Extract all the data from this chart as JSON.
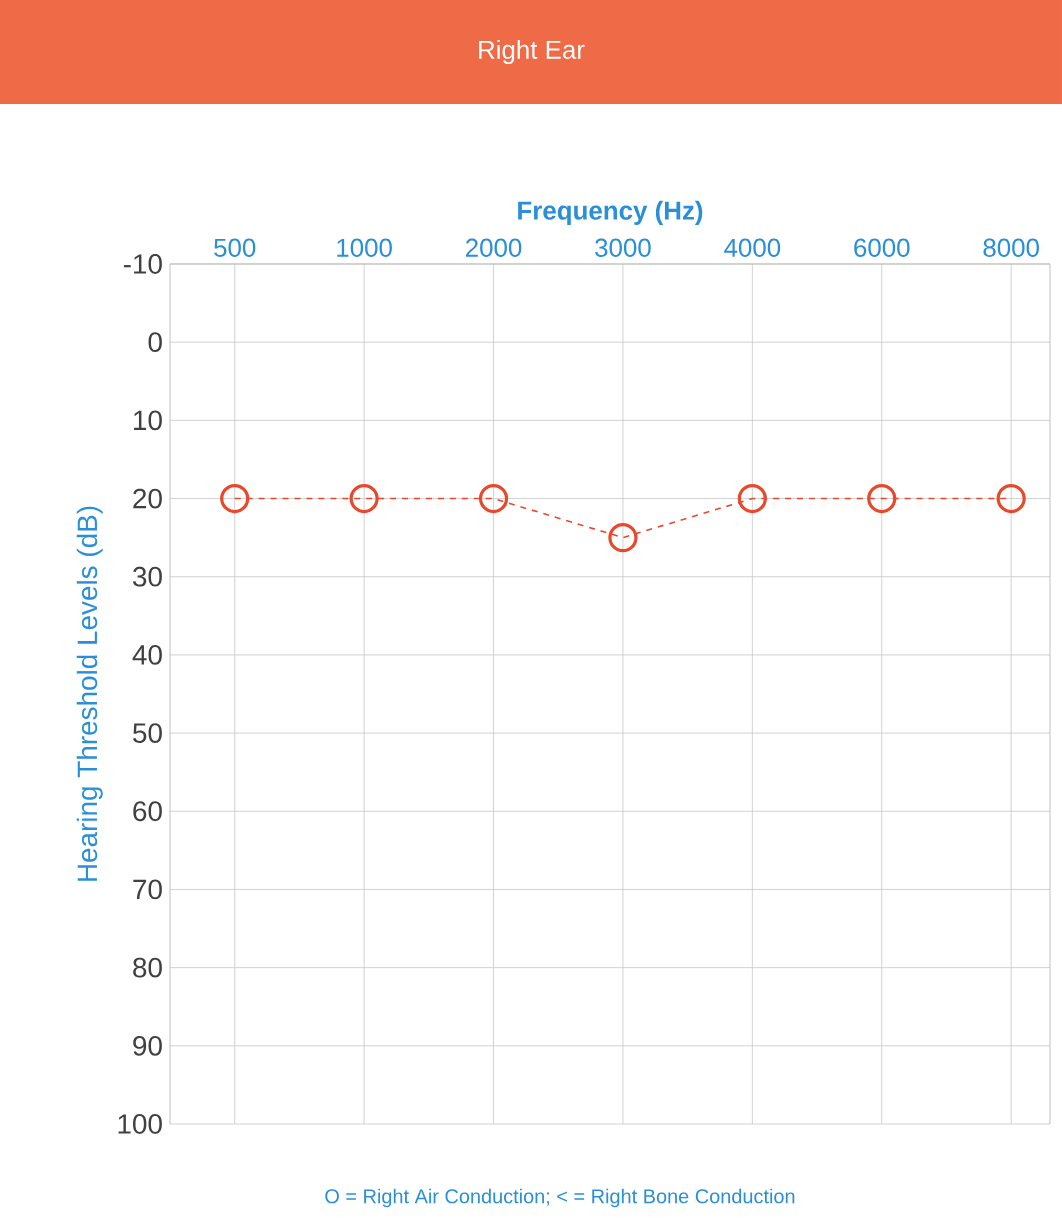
{
  "chart_data": {
    "type": "line",
    "title": "Right Ear",
    "xlabel": "Frequency (Hz)",
    "ylabel": "Hearing Threshold Levels (dB)",
    "categories": [
      "500",
      "1000",
      "2000",
      "3000",
      "4000",
      "6000",
      "8000"
    ],
    "series": [
      {
        "color": "#e8482c",
        "values": [
          20,
          20,
          20,
          25,
          20,
          20,
          20
        ]
      }
    ],
    "ylim": [
      100,
      -10
    ],
    "yticks": [
      -10,
      0,
      10,
      20,
      30,
      40,
      50,
      60,
      70,
      80,
      90,
      100
    ],
    "grid": true,
    "marker": "circle",
    "line_style": "dashed",
    "annotations": [
      "O = Right Air Conduction;  < = Right Bone Conduction"
    ]
  }
}
